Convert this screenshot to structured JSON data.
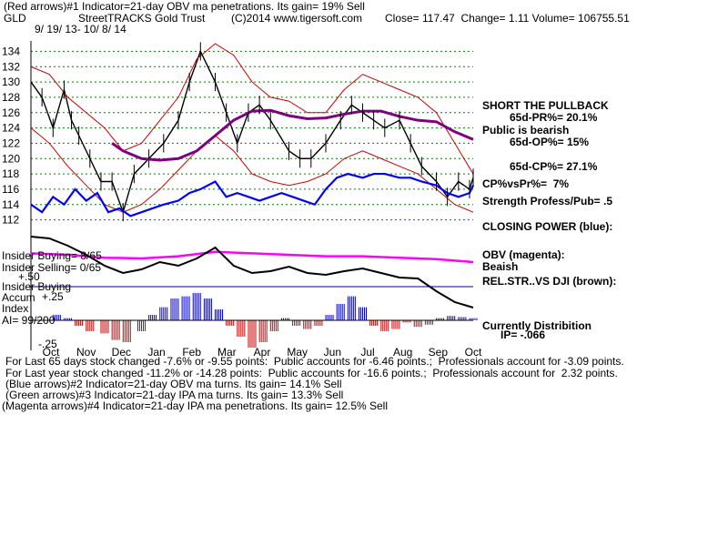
{
  "header": {
    "line1": "(Red arrows)#1 Indicator=21-day OBV ma penetrations. Its gain= 19% Sell",
    "symbol": "GLD",
    "name": "StreetTRACKS Gold Trust",
    "copyright": "(C)2014 www.tigersoft.com",
    "quote": "Close= 117.47  Change= 1.11 Volume= 106755.51",
    "date_range": "9/ 19/ 13- 10/ 8/ 14"
  },
  "right_notes": [
    "SHORT THE PULLBACK",
    "65d-PR%= 20.1%",
    "Public is bearish",
    "65d-OP%= 15%",
    "65d-CP%= 27.1%",
    "CP%vsPr%=  7%",
    "Strength Profess/Pub= .5",
    "CLOSING POWER (blue):",
    "OBV (magenta):",
    "Beaish",
    "REL.STR..VS DJI (brown):",
    "Currently Distribition",
    "IP= -.066"
  ],
  "left_notes": {
    "insider_buying": "Insider Buying= 8/65",
    "insider_selling": "Insider Selling= 0/65",
    "plus50": "+.50",
    "insider_buying2": "Insider Buying",
    "accum1": "Accum",
    "plus25": "+.25",
    "index": "Index",
    "ai": "AI= 99/200",
    "minus25": "-.25"
  },
  "footer": [
    "For Last 65 days stock changed -7.6% or -9.55 points:  Public accounts for -6.46 points.;  Professionals account for -3.09 points.",
    "For Last year stock changed -11.2% or -14.28 points:  Public accounts for -16.6 points.;  Professionals account for  2.32 points.",
    "(Blue arrows)#2 Indicator=21-day OBV ma turns. Its gain= 14.1% Sell",
    "(Green arrows)#3 Indicator=21-day IPA ma turns. Its gain= 13.3% Sell",
    "(Magenta arrows)#4 Indicator=21-day IPA ma penetrations. Its gain= 12.5% Sell"
  ],
  "colors": {
    "price": "#000000",
    "band": "#cc0000",
    "ma": "#800080",
    "closing_power": "#0000ff",
    "obv": "#ff00ff",
    "rel_str": "#000000",
    "accum_pos": "#0000cc",
    "accum_neg": "#cc0000",
    "grid": "#008000",
    "insider_line": "#000080"
  },
  "chart_data": {
    "type": "line",
    "y_ticks": [
      134,
      132,
      130,
      128,
      126,
      124,
      122,
      120,
      118,
      116,
      114,
      112
    ],
    "ylim": [
      111,
      135
    ],
    "month_labels": [
      "Oct",
      "Nov",
      "Dec",
      "Jan",
      "Feb",
      "Mar",
      "Apr",
      "May",
      "Jun",
      "Jul",
      "Aug",
      "Sep",
      "Oct"
    ],
    "grid": true,
    "series": [
      {
        "id": "price_close",
        "t": [
          0,
          0.3,
          0.6,
          0.9,
          1.1,
          1.3,
          1.6,
          1.9,
          2.2,
          2.5,
          2.8,
          3.2,
          3.6,
          4.0,
          4.3,
          4.6,
          5.0,
          5.3,
          5.6,
          5.9,
          6.2,
          6.5,
          7.0,
          7.3,
          7.6,
          8.0,
          8.4,
          8.7,
          9.0,
          9.3,
          9.6,
          10.0,
          10.3,
          10.6,
          11.0,
          11.3,
          11.6,
          11.9,
          12.0
        ],
        "values": [
          130,
          128,
          124,
          129,
          125,
          123,
          120,
          117,
          117,
          113,
          118,
          120,
          122,
          125,
          130,
          134,
          130,
          126,
          122,
          126,
          127,
          125,
          121,
          120,
          120,
          122,
          125,
          127,
          126,
          125,
          124,
          125,
          122,
          119,
          117,
          115,
          117,
          116,
          117.5
        ]
      },
      {
        "id": "upper_band",
        "t": [
          0,
          0.5,
          1.0,
          1.5,
          2.0,
          2.5,
          3.0,
          3.5,
          4.0,
          4.5,
          5.0,
          5.5,
          6.0,
          6.5,
          7.0,
          7.5,
          8.0,
          8.5,
          9.0,
          9.5,
          10.0,
          10.5,
          11.0,
          11.5,
          12.0
        ],
        "values": [
          132,
          131,
          128,
          126,
          124,
          121,
          122,
          125,
          128,
          133,
          135,
          133.5,
          130,
          128,
          127.5,
          126,
          126,
          129,
          131,
          130,
          129,
          128,
          126,
          122,
          118
        ]
      },
      {
        "id": "lower_band",
        "t": [
          0,
          0.5,
          1.0,
          1.5,
          2.0,
          2.5,
          3.0,
          3.5,
          4.0,
          4.5,
          5.0,
          5.5,
          6.0,
          6.5,
          7.0,
          7.5,
          8.0,
          8.5,
          9.0,
          9.5,
          10.0,
          10.5,
          11.0,
          11.5,
          12.0
        ],
        "values": [
          124,
          122,
          119,
          116.5,
          114,
          113,
          114,
          116,
          118.5,
          121,
          123,
          121,
          118,
          117,
          116.5,
          117,
          118,
          120,
          121,
          120,
          119,
          118,
          116,
          114,
          113
        ]
      },
      {
        "id": "ma",
        "t": [
          2.2,
          2.5,
          3.0,
          3.5,
          4.0,
          4.5,
          5.0,
          5.5,
          6.0,
          6.5,
          7.0,
          7.5,
          8.0,
          8.5,
          9.0,
          9.5,
          10.0,
          10.5,
          11.0,
          11.5,
          12.0
        ],
        "values": [
          122,
          121,
          120,
          119.8,
          120,
          121,
          123,
          125,
          126.2,
          126.3,
          125.6,
          125.2,
          125.3,
          125.8,
          126.2,
          126.2,
          125.5,
          125,
          124.8,
          123.5,
          122.5
        ]
      },
      {
        "id": "closing_power",
        "t": [
          0,
          0.3,
          0.6,
          0.9,
          1.2,
          1.5,
          1.8,
          2.1,
          2.4,
          2.7,
          3.0,
          3.3,
          3.6,
          4.0,
          4.3,
          4.6,
          5.0,
          5.3,
          5.6,
          5.9,
          6.2,
          6.5,
          6.8,
          7.1,
          7.4,
          7.7,
          8.0,
          8.3,
          8.6,
          9.0,
          9.3,
          9.6,
          10.0,
          10.3,
          10.6,
          11.0,
          11.3,
          11.6,
          11.9,
          12.0
        ],
        "values": [
          114,
          113,
          115,
          114,
          116,
          114.5,
          115.5,
          113,
          113.5,
          112.5,
          113,
          113.5,
          114,
          114.5,
          115.5,
          116,
          117,
          115,
          115.5,
          115,
          114.5,
          115,
          115.5,
          115,
          114.5,
          114,
          116,
          117.5,
          118,
          117.5,
          118,
          118,
          117.5,
          117.5,
          117,
          116.5,
          115.5,
          115,
          115.5,
          116.5
        ]
      }
    ],
    "indicator_series": [
      {
        "id": "obv",
        "t": [
          0,
          1,
          2,
          3,
          4,
          5,
          6,
          7,
          8,
          9,
          10,
          11,
          12
        ],
        "values": [
          -8,
          -10,
          -14,
          -15,
          -12,
          -6,
          -8,
          -10,
          -12,
          -12,
          -14,
          -16,
          -20
        ]
      },
      {
        "id": "rel_str_dji",
        "t": [
          0,
          0.5,
          1,
          1.5,
          2,
          2.5,
          3,
          3.5,
          4,
          4.5,
          5,
          5.5,
          6,
          6.5,
          7,
          7.5,
          8,
          8.5,
          9,
          9.5,
          10,
          10.5,
          11,
          11.5,
          12
        ],
        "values": [
          260,
          262,
          270,
          280,
          292,
          300,
          296,
          288,
          292,
          284,
          272,
          292,
          300,
          298,
          293,
          300,
          302,
          298,
          295,
          300,
          305,
          306,
          320,
          332,
          338
        ]
      }
    ],
    "accum_index": {
      "t": [
        0.7,
        1.0,
        1.3,
        1.6,
        2.0,
        2.3,
        2.6,
        3.0,
        3.3,
        3.6,
        3.9,
        4.2,
        4.5,
        4.8,
        5.1,
        5.4,
        5.7,
        6.0,
        6.3,
        6.6,
        6.9,
        7.2,
        7.5,
        7.8,
        8.1,
        8.4,
        8.7,
        9.0,
        9.3,
        9.6,
        9.9,
        10.2,
        10.5,
        10.8,
        11.1,
        11.4,
        11.7,
        12.0
      ],
      "values": [
        0.05,
        0.02,
        -0.05,
        -0.1,
        -0.12,
        -0.18,
        -0.2,
        -0.1,
        0.05,
        0.12,
        0.2,
        0.22,
        0.25,
        0.2,
        0.1,
        -0.05,
        -0.15,
        -0.25,
        -0.2,
        -0.1,
        0.02,
        -0.05,
        -0.08,
        -0.05,
        0.05,
        0.15,
        0.22,
        0.12,
        -0.05,
        -0.1,
        -0.08,
        -0.02,
        -0.06,
        -0.04,
        0.02,
        0.04,
        0.03,
        0.02
      ]
    }
  }
}
